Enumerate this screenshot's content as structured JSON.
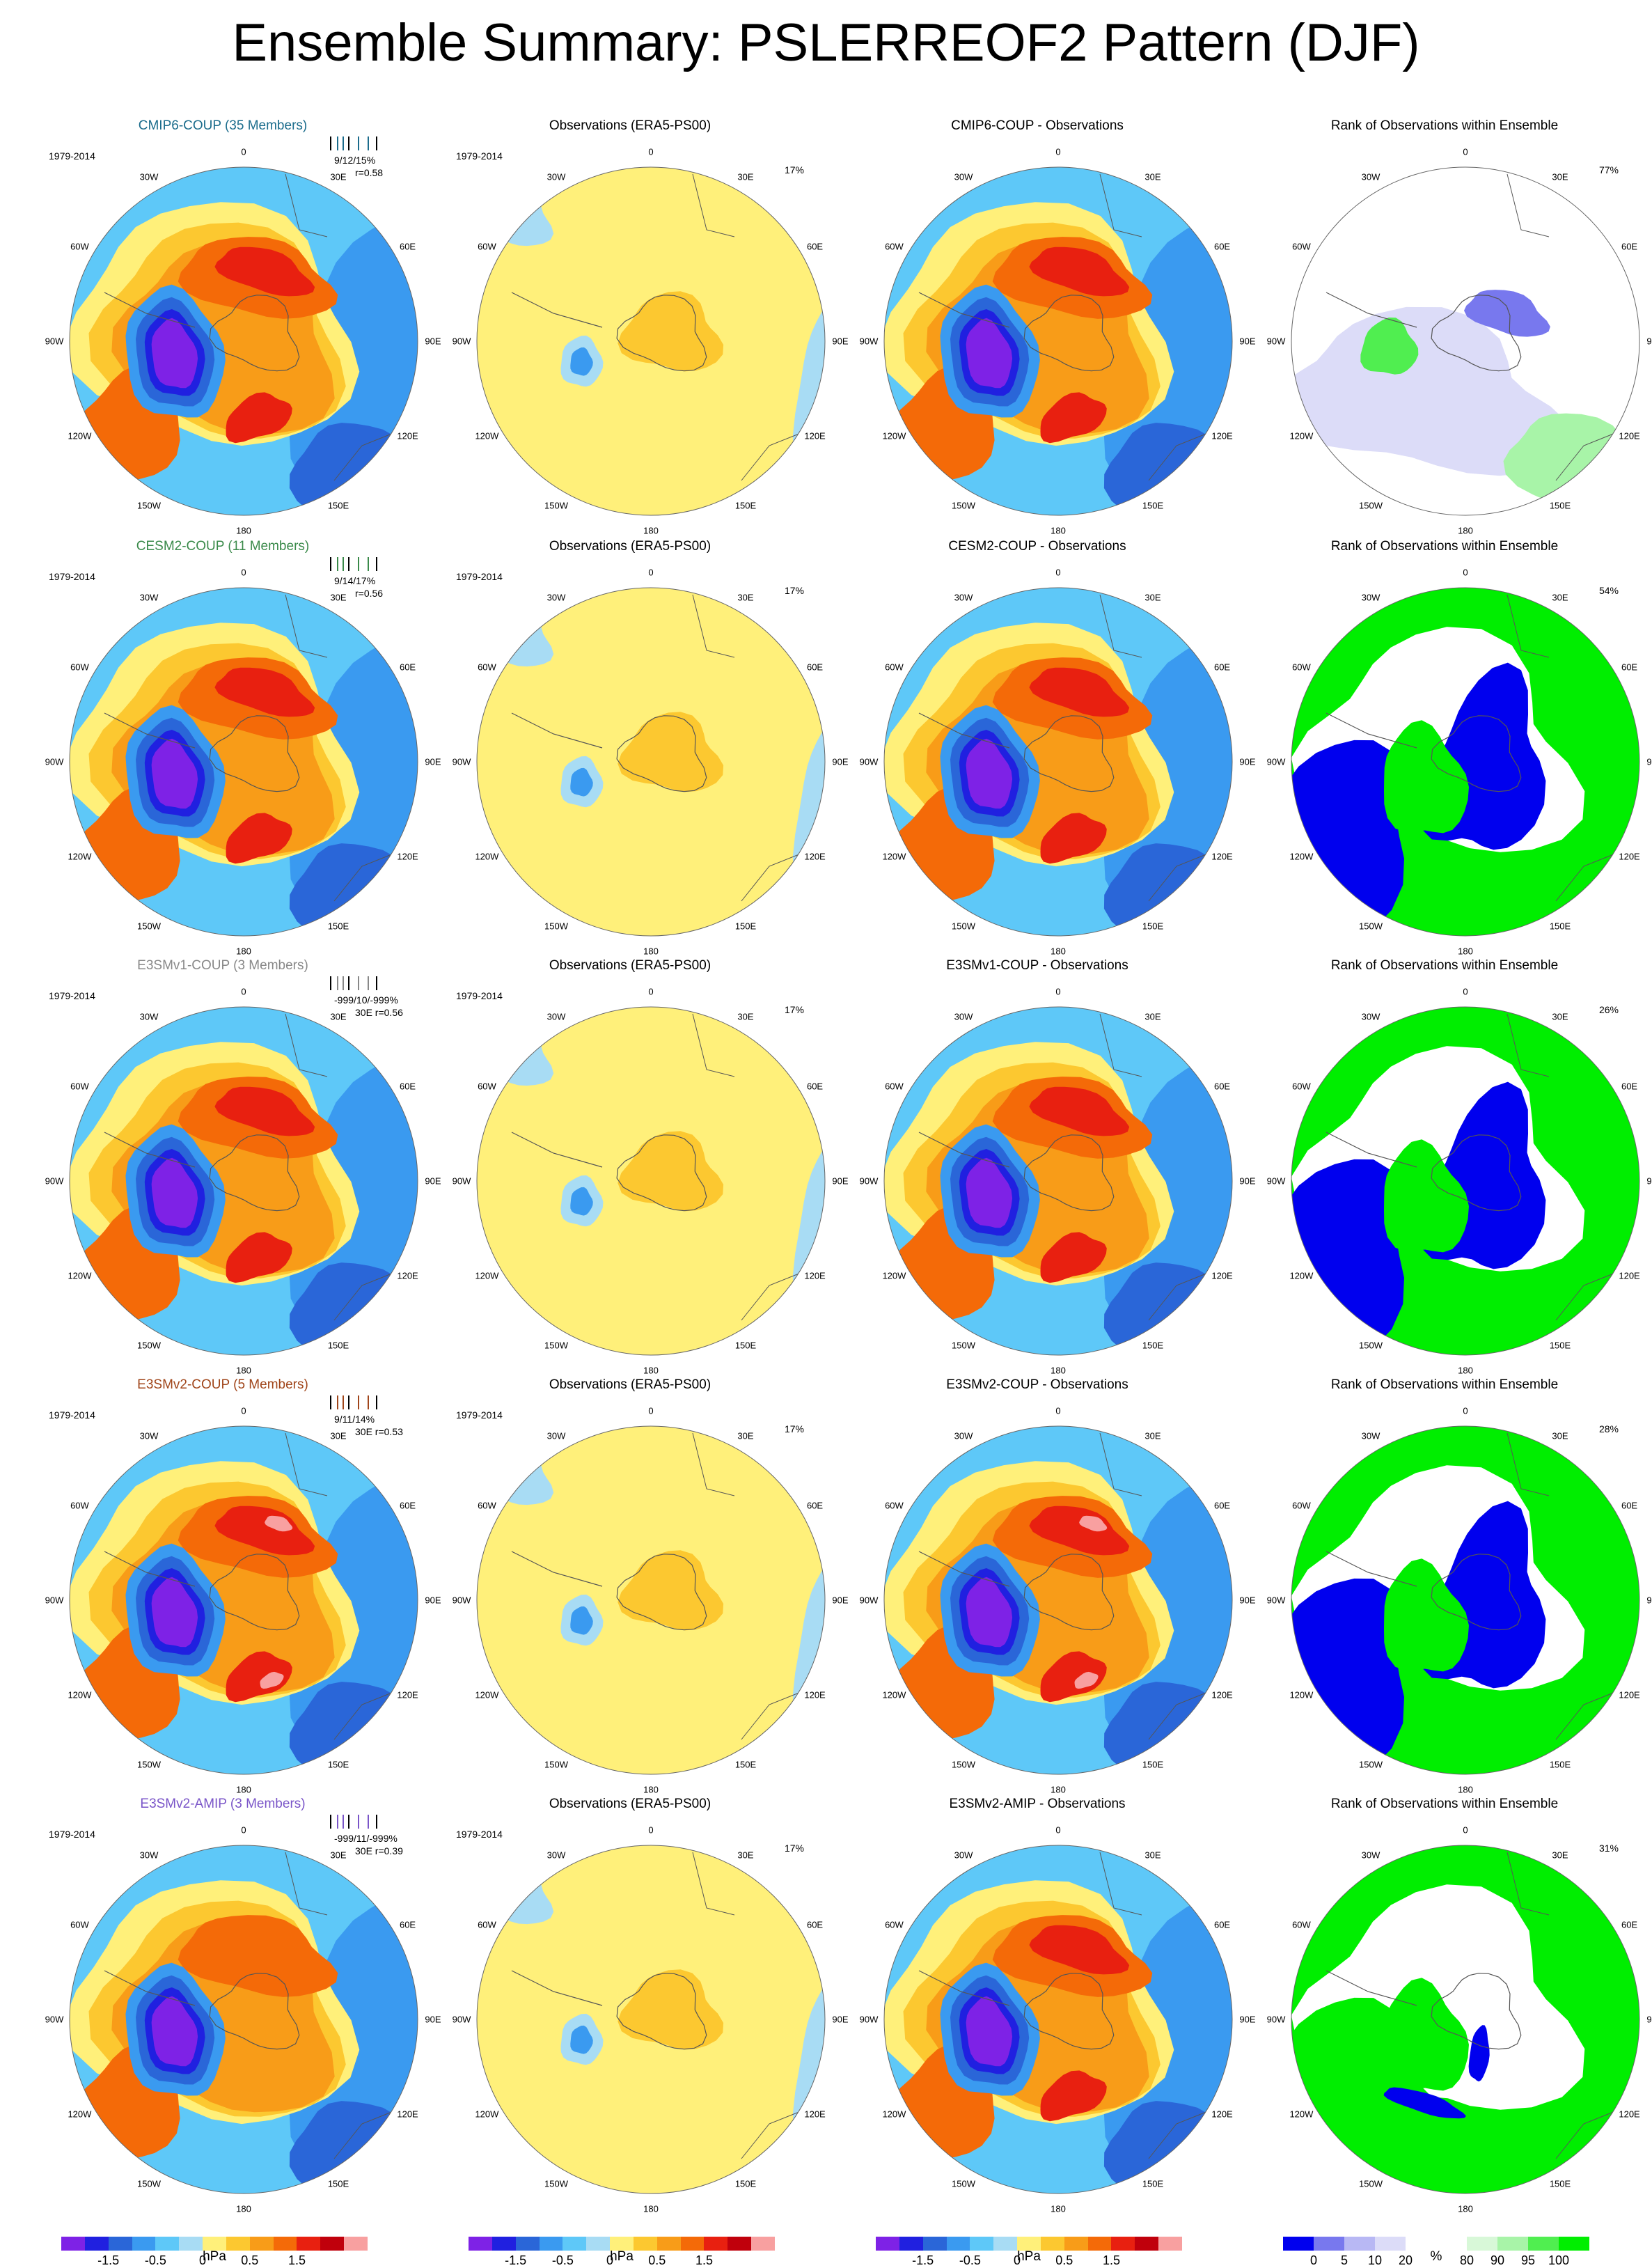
{
  "title": "Ensemble Summary: PSLERREOF2 Pattern (DJF)",
  "longitude_labels": [
    "0",
    "30E",
    "60E",
    "90E",
    "120E",
    "150E",
    "180",
    "150W",
    "120W",
    "90W",
    "60W",
    "30W"
  ],
  "period": "1979-2014",
  "obs_title": "Observations (ERA5-PS00)",
  "obs_pct": "17%",
  "rank_title": "Rank of Observations within Ensemble",
  "rows": [
    {
      "model_title": "CMIP6-COUP (35 Members)",
      "model_color": "#1b6c8c",
      "stats1": "9/12/15%",
      "stats2": "r=0.58",
      "stats1_30e": false,
      "diff_title": "CMIP6-COUP - Observations",
      "rank_pct": "77%"
    },
    {
      "model_title": "CESM2-COUP (11 Members)",
      "model_color": "#3a8a4a",
      "stats1": "9/14/17%",
      "stats2": "r=0.56",
      "stats1_30e": false,
      "diff_title": "CESM2-COUP - Observations",
      "rank_pct": "54%"
    },
    {
      "model_title": "E3SMv1-COUP (3 Members)",
      "model_color": "#888888",
      "stats1": "-999/10/-999%",
      "stats2": "30E r=0.56",
      "stats1_30e": true,
      "diff_title": "E3SMv1-COUP - Observations",
      "rank_pct": "26%"
    },
    {
      "model_title": "E3SMv2-COUP (5 Members)",
      "model_color": "#a0451a",
      "stats1": "9/11/14%",
      "stats2": "30E r=0.53",
      "stats1_30e": true,
      "diff_title": "E3SMv2-COUP - Observations",
      "rank_pct": "28%"
    },
    {
      "model_title": "E3SMv2-AMIP (3 Members)",
      "model_color": "#7a55c8",
      "stats1": "-999/11/-999%",
      "stats2": "30E r=0.39",
      "stats1_30e": true,
      "diff_title": "E3SMv2-AMIP - Observations",
      "rank_pct": "31%"
    }
  ],
  "colorbar_hpa": {
    "labels": [
      "-1.5",
      "-0.5",
      "0",
      "0.5",
      "1.5"
    ],
    "unit": "hPa",
    "colors": [
      "#7e22e6",
      "#2020e0",
      "#2a66d8",
      "#3a9af0",
      "#5ec8f8",
      "#a8dcf4",
      "#fff07a",
      "#fcc830",
      "#f89c18",
      "#f46a08",
      "#e82010",
      "#c0000c",
      "#f8a0a0"
    ]
  },
  "colorbar_rank": {
    "labels": [
      "0",
      "5",
      "10",
      "20",
      "80",
      "90",
      "95",
      "100"
    ],
    "unit": "%",
    "colors": [
      "#0000ee",
      "#7878ee",
      "#b8b8f4",
      "#dcdcf8",
      "#ffffff",
      "#ffffff",
      "#d8f8d8",
      "#a8f4a8",
      "#50ee50",
      "#00ee00"
    ]
  }
}
